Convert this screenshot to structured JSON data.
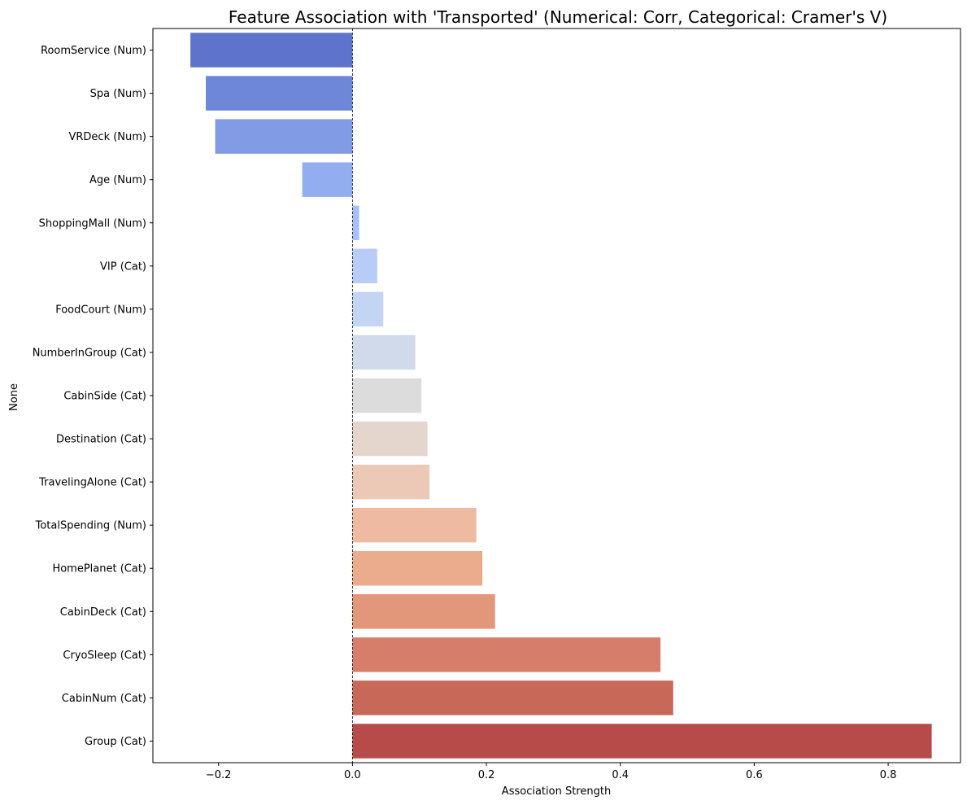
{
  "chart_data": {
    "type": "bar",
    "orientation": "horizontal",
    "title": "Feature Association with 'Transported' (Numerical: Corr, Categorical: Cramer's V)",
    "xlabel": "Association Strength",
    "ylabel": "None",
    "xlim": [
      -0.298,
      0.908
    ],
    "xticks": [
      -0.2,
      0.0,
      0.2,
      0.4,
      0.6,
      0.8
    ],
    "xtick_labels": [
      "−0.2",
      "0.0",
      "0.2",
      "0.4",
      "0.6",
      "0.8"
    ],
    "zero_line": true,
    "grid": false,
    "legend": "none",
    "categories": [
      "RoomService (Num)",
      "Spa (Num)",
      "VRDeck (Num)",
      "Age (Num)",
      "ShoppingMall (Num)",
      "VIP (Cat)",
      "FoodCourt (Num)",
      "NumberInGroup (Cat)",
      "CabinSide (Cat)",
      "Destination (Cat)",
      "TravelingAlone (Cat)",
      "TotalSpending (Num)",
      "HomePlanet (Cat)",
      "CabinDeck (Cat)",
      "CryoSleep (Cat)",
      "CabinNum (Cat)",
      "Group (Cat)"
    ],
    "values": [
      -0.242,
      -0.219,
      -0.205,
      -0.075,
      0.01,
      0.037,
      0.046,
      0.094,
      0.103,
      0.112,
      0.115,
      0.185,
      0.194,
      0.213,
      0.46,
      0.479,
      0.865
    ],
    "colors": [
      "#5e73cb",
      "#6f87d8",
      "#819be4",
      "#93aef0",
      "#a7c1f6",
      "#b7cdf8",
      "#c4d5f3",
      "#d1daea",
      "#dcdcdc",
      "#e5d6cd",
      "#ecc9b7",
      "#eebba2",
      "#eaac8d",
      "#e2977a",
      "#d67e6a",
      "#c76859",
      "#b74b4a"
    ]
  }
}
